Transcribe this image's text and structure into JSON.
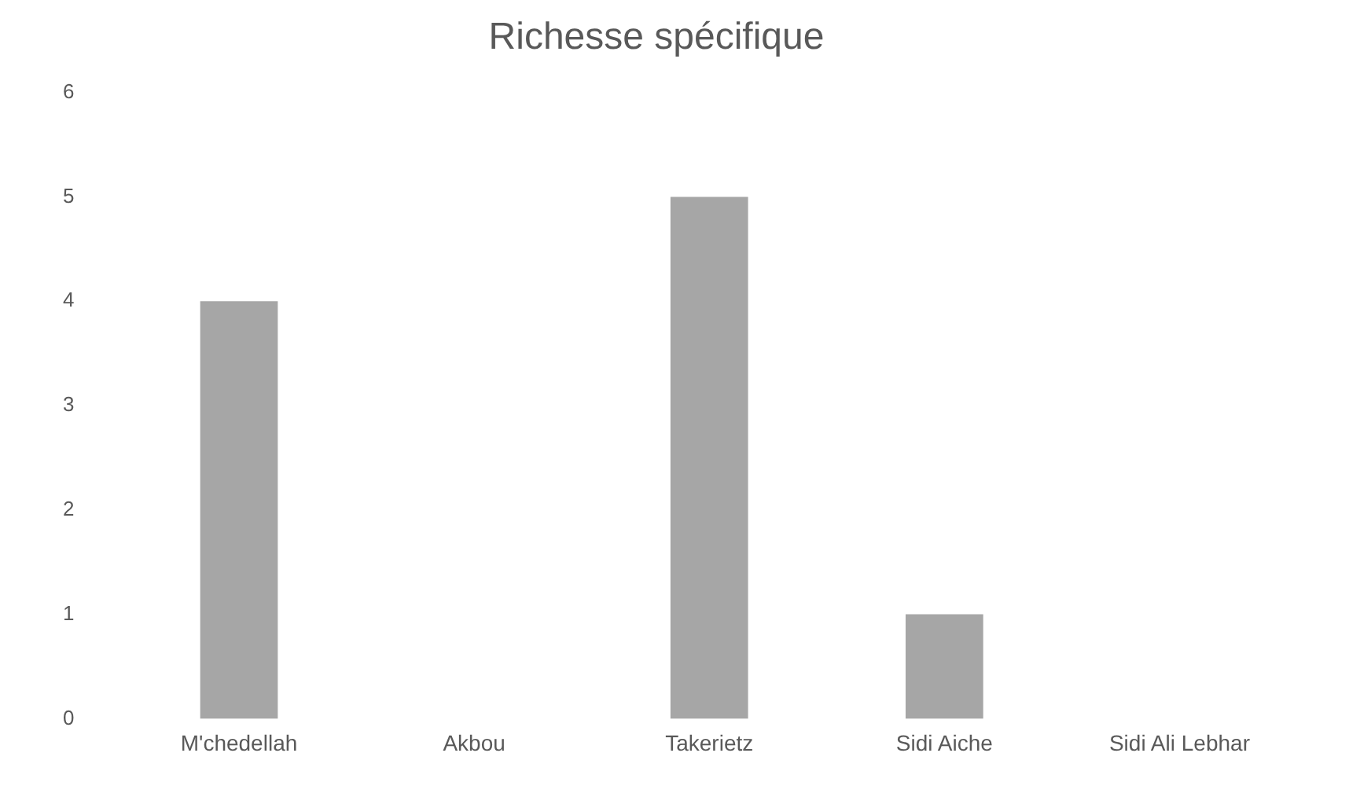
{
  "chart_data": {
    "type": "bar",
    "title": "Richesse spécifique",
    "categories": [
      "M'chedellah",
      "Akbou",
      "Takerietz",
      "Sidi Aiche",
      "Sidi Ali Lebhar"
    ],
    "values": [
      4,
      0,
      5,
      1,
      0
    ],
    "color": "#a6a6a6",
    "ylim": [
      0,
      6
    ],
    "yticks": [
      0,
      1,
      2,
      3,
      4,
      5,
      6
    ],
    "grid": false,
    "legend": false
  }
}
